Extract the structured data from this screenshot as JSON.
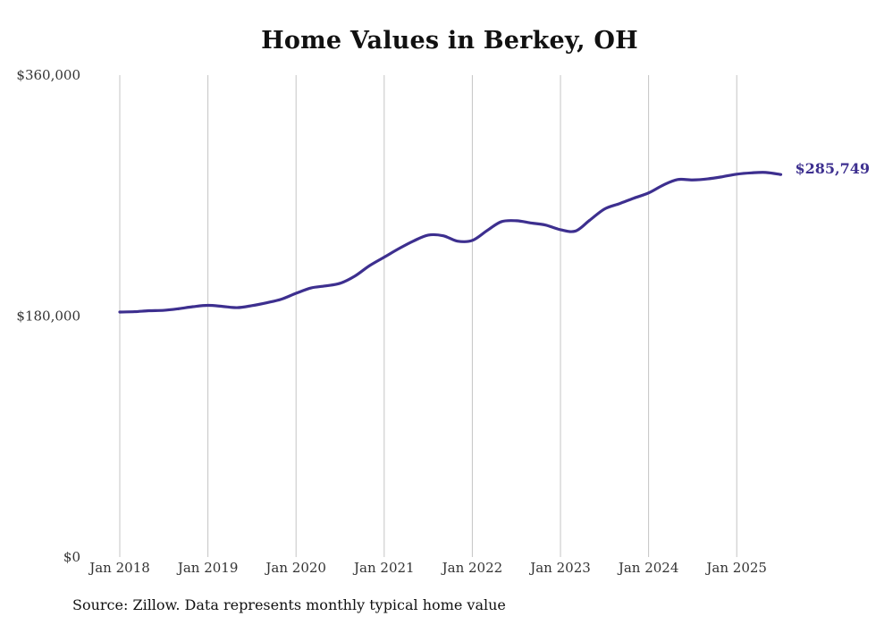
{
  "chart_data": {
    "type": "line",
    "title": "Home Values in Berkey, OH",
    "xlabel": "",
    "ylabel": "",
    "ylim": [
      0,
      360000
    ],
    "y_ticks": [
      {
        "value": 0,
        "label": "$0"
      },
      {
        "value": 180000,
        "label": "$180,000"
      },
      {
        "value": 360000,
        "label": "$360,000"
      }
    ],
    "x_ticks": [
      {
        "value": 2018.0,
        "label": "Jan 2018"
      },
      {
        "value": 2019.0,
        "label": "Jan 2019"
      },
      {
        "value": 2020.0,
        "label": "Jan 2020"
      },
      {
        "value": 2021.0,
        "label": "Jan 2021"
      },
      {
        "value": 2022.0,
        "label": "Jan 2022"
      },
      {
        "value": 2023.0,
        "label": "Jan 2023"
      },
      {
        "value": 2024.0,
        "label": "Jan 2024"
      },
      {
        "value": 2025.0,
        "label": "Jan 2025"
      }
    ],
    "xlim": [
      2018.0,
      2025.5
    ],
    "grid": "vertical",
    "series": [
      {
        "color": "#3d2f8f",
        "points": [
          [
            2018.0,
            183000
          ],
          [
            2018.17,
            183300
          ],
          [
            2018.33,
            184000
          ],
          [
            2018.5,
            184300
          ],
          [
            2018.67,
            185500
          ],
          [
            2018.83,
            187000
          ],
          [
            2019.0,
            188000
          ],
          [
            2019.17,
            187200
          ],
          [
            2019.33,
            186300
          ],
          [
            2019.5,
            187800
          ],
          [
            2019.67,
            190000
          ],
          [
            2019.83,
            192500
          ],
          [
            2020.0,
            197000
          ],
          [
            2020.17,
            201000
          ],
          [
            2020.33,
            202500
          ],
          [
            2020.5,
            204500
          ],
          [
            2020.67,
            210000
          ],
          [
            2020.83,
            217500
          ],
          [
            2021.0,
            224000
          ],
          [
            2021.17,
            230500
          ],
          [
            2021.33,
            236000
          ],
          [
            2021.5,
            240500
          ],
          [
            2021.67,
            240000
          ],
          [
            2021.83,
            236000
          ],
          [
            2022.0,
            236500
          ],
          [
            2022.17,
            244000
          ],
          [
            2022.33,
            250500
          ],
          [
            2022.5,
            251200
          ],
          [
            2022.67,
            249500
          ],
          [
            2022.83,
            248000
          ],
          [
            2023.0,
            244500
          ],
          [
            2023.17,
            243500
          ],
          [
            2023.33,
            251500
          ],
          [
            2023.5,
            260000
          ],
          [
            2023.67,
            264000
          ],
          [
            2023.83,
            268000
          ],
          [
            2024.0,
            272000
          ],
          [
            2024.17,
            278000
          ],
          [
            2024.33,
            282000
          ],
          [
            2024.5,
            281700
          ],
          [
            2024.67,
            282500
          ],
          [
            2024.83,
            284000
          ],
          [
            2025.0,
            286000
          ],
          [
            2025.17,
            287000
          ],
          [
            2025.33,
            287300
          ],
          [
            2025.5,
            285749
          ]
        ]
      }
    ],
    "annotations": [
      {
        "text": "$285,749",
        "attach": "last-point"
      }
    ],
    "source": "Source: Zillow. Data represents monthly typical home value"
  }
}
